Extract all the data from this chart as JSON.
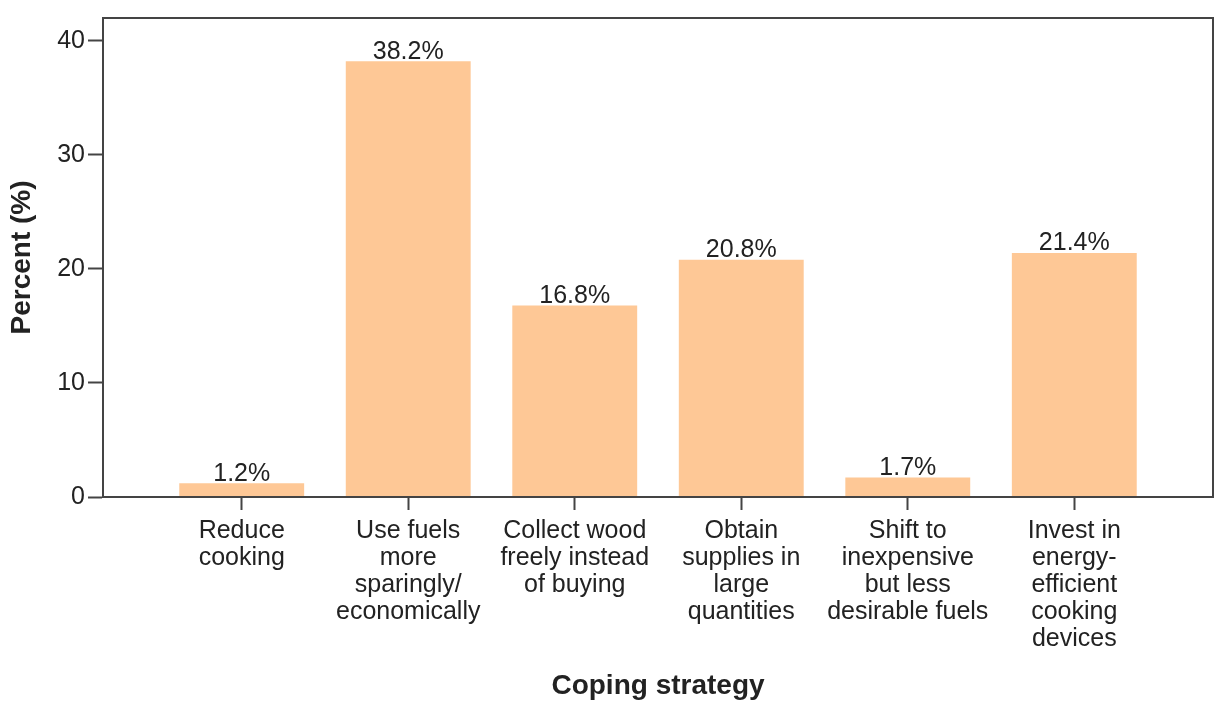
{
  "chart_data": {
    "type": "bar",
    "xlabel": "Coping strategy",
    "ylabel": "Percent (%)",
    "categories": [
      "Reduce cooking",
      "Use fuels more sparingly/ economically",
      "Collect wood freely instead of buying",
      "Obtain supplies in large quantities",
      "Shift to inexpensive but less desirable fuels",
      "Invest in energy-efficient cooking devices"
    ],
    "values": [
      1.2,
      38.2,
      16.8,
      20.8,
      1.7,
      21.4
    ],
    "color": "#fec896",
    "value_labels": [
      "1.2%",
      "38.2%",
      "16.8%",
      "20.8%",
      "1.7%",
      "21.4%"
    ],
    "ylim": [
      0,
      42
    ],
    "yticks": [
      0,
      10,
      20,
      30,
      40
    ],
    "grid": false
  }
}
